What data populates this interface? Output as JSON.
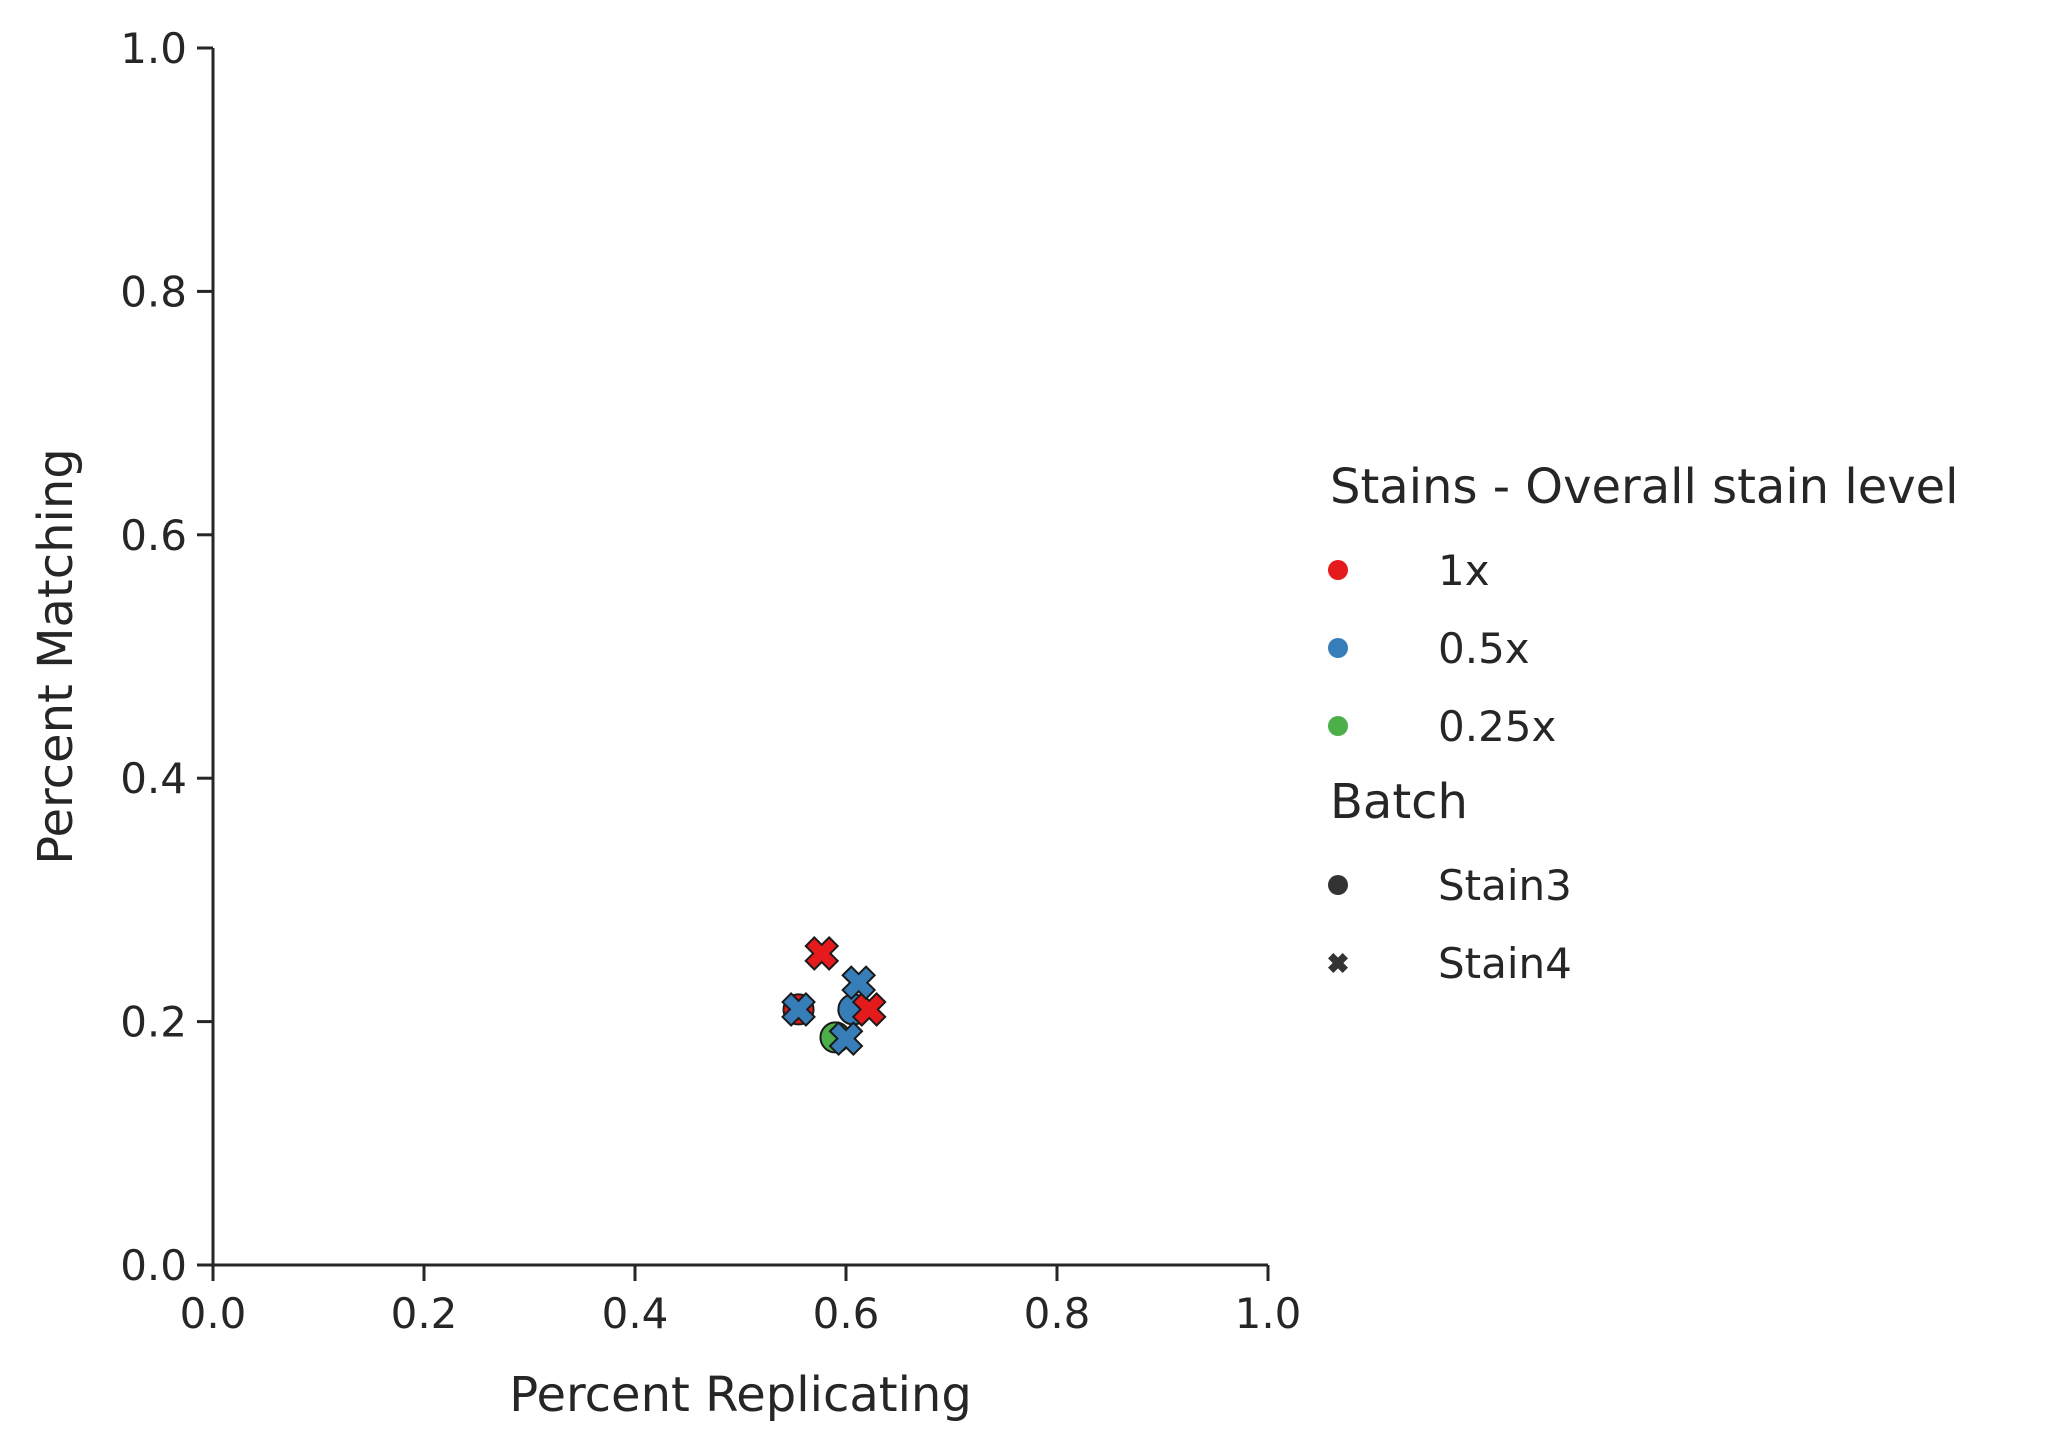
{
  "chart_data": {
    "type": "scatter",
    "xlabel": "Percent Replicating",
    "ylabel": "Percent Matching",
    "xlim": [
      0.0,
      1.0
    ],
    "ylim": [
      0.0,
      1.0
    ],
    "xticks": [
      "0.0",
      "0.2",
      "0.4",
      "0.6",
      "0.8",
      "1.0"
    ],
    "yticks": [
      "0.0",
      "0.2",
      "0.4",
      "0.6",
      "0.8",
      "1.0"
    ],
    "grid": false,
    "legend_position": "right",
    "hue_legend": {
      "title": "Stains - Overall stain level",
      "items": [
        {
          "label": "1x",
          "color": "#e41a1c"
        },
        {
          "label": "0.5x",
          "color": "#377eb8"
        },
        {
          "label": "0.25x",
          "color": "#4daf4a"
        }
      ]
    },
    "style_legend": {
      "title": "Batch",
      "items": [
        {
          "label": "Stain3",
          "marker": "circle"
        },
        {
          "label": "Stain4",
          "marker": "x"
        }
      ]
    },
    "points": [
      {
        "x": 0.555,
        "y": 0.21,
        "hue": "1x",
        "batch": "Stain3"
      },
      {
        "x": 0.607,
        "y": 0.21,
        "hue": "0.5x",
        "batch": "Stain3"
      },
      {
        "x": 0.59,
        "y": 0.187,
        "hue": "0.25x",
        "batch": "Stain3"
      },
      {
        "x": 0.577,
        "y": 0.256,
        "hue": "1x",
        "batch": "Stain4"
      },
      {
        "x": 0.622,
        "y": 0.21,
        "hue": "1x",
        "batch": "Stain4"
      },
      {
        "x": 0.555,
        "y": 0.21,
        "hue": "0.5x",
        "batch": "Stain4"
      },
      {
        "x": 0.612,
        "y": 0.232,
        "hue": "0.5x",
        "batch": "Stain4"
      },
      {
        "x": 0.6,
        "y": 0.186,
        "hue": "0.5x",
        "batch": "Stain4"
      }
    ]
  }
}
